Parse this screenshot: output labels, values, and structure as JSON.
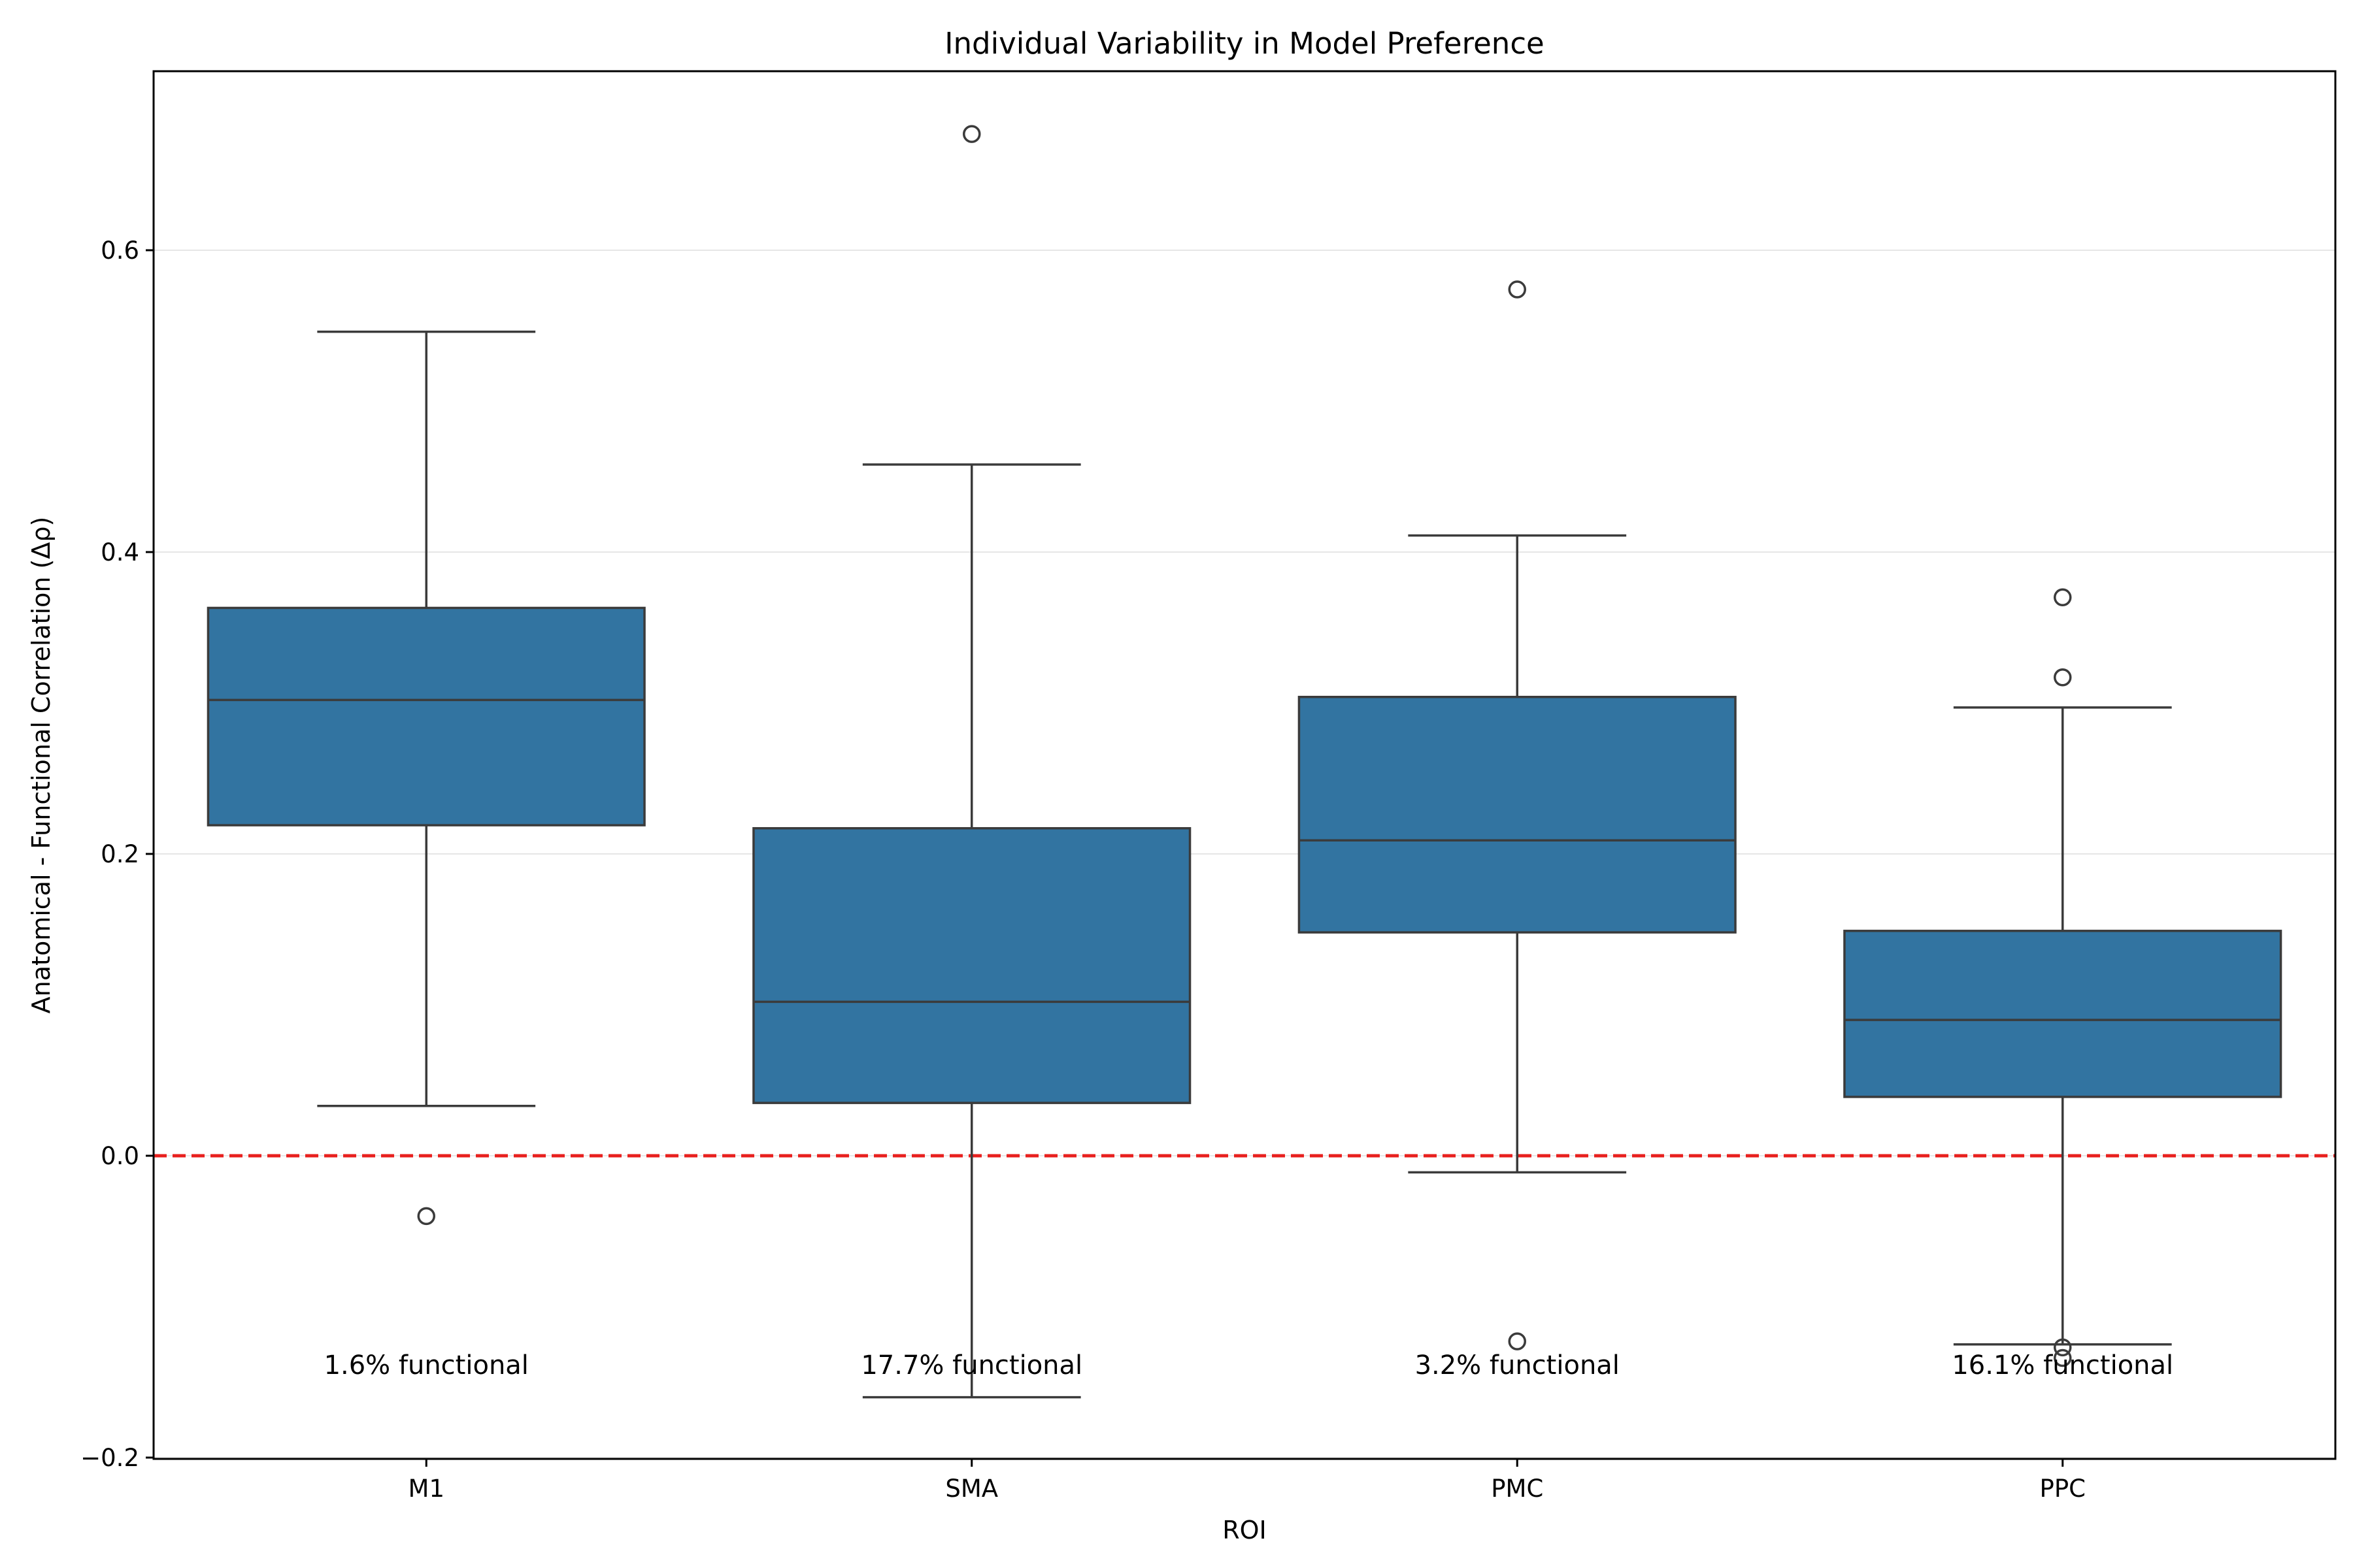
{
  "chart_data": {
    "type": "box",
    "title": "Individual Variability in Model Preference",
    "xlabel": "ROI",
    "ylabel": "Anatomical - Functional Correlation (Δρ)",
    "ylim": [
      -0.2,
      0.72
    ],
    "yticks": [
      -0.2,
      0.0,
      0.2,
      0.4,
      0.6
    ],
    "ytick_labels": [
      "−0.2",
      "0.0",
      "0.2",
      "0.4",
      "0.6"
    ],
    "grid": "horizontal",
    "categories": [
      "M1",
      "SMA",
      "PMC",
      "PPC"
    ],
    "boxes": [
      {
        "category": "M1",
        "whisker_low": 0.033,
        "q1": 0.219,
        "median": 0.302,
        "q3": 0.363,
        "whisker_high": 0.546,
        "outliers": [
          -0.04
        ],
        "annotation": "1.6% functional"
      },
      {
        "category": "SMA",
        "whisker_low": -0.16,
        "q1": 0.035,
        "median": 0.102,
        "q3": 0.217,
        "whisker_high": 0.458,
        "outliers": [
          0.677
        ],
        "annotation": "17.7% functional"
      },
      {
        "category": "PMC",
        "whisker_low": -0.011,
        "q1": 0.148,
        "median": 0.209,
        "q3": 0.304,
        "whisker_high": 0.411,
        "outliers": [
          0.574,
          -0.123
        ],
        "annotation": "3.2% functional"
      },
      {
        "category": "PPC",
        "whisker_low": -0.125,
        "q1": 0.039,
        "median": 0.09,
        "q3": 0.149,
        "whisker_high": 0.297,
        "outliers": [
          0.37,
          0.317,
          -0.127,
          -0.134
        ],
        "annotation": "16.1% functional"
      }
    ],
    "reference_line": {
      "y": 0.0,
      "style": "dashed"
    },
    "colors": {
      "box_fill": "#3274a1",
      "box_edge": "#3b3b3b",
      "reference_line": "#e8201e",
      "grid": "#e6e6e6"
    }
  }
}
